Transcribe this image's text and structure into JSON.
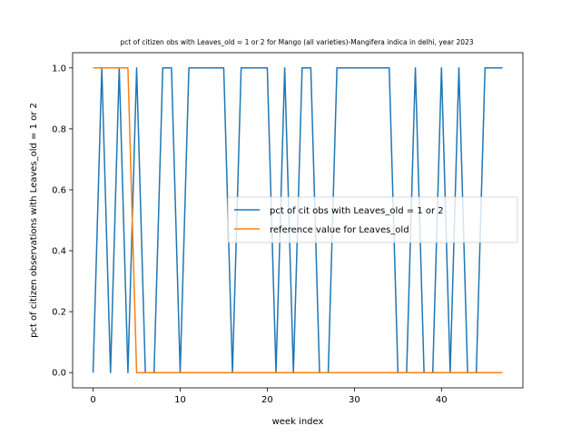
{
  "chart_data": {
    "type": "line",
    "title": "pct of citizen obs with Leaves_old = 1 or 2 for Mango (all varieties)-Mangifera indica in delhi, year 2023",
    "xlabel": "week index",
    "ylabel": "pct of citizen observations with Leaves_old = 1 or 2",
    "xlim": [
      -2.35,
      49.35
    ],
    "ylim": [
      -0.05,
      1.05
    ],
    "xticks": [
      0,
      10,
      20,
      30,
      40
    ],
    "xtick_labels": [
      "0",
      "10",
      "20",
      "30",
      "40"
    ],
    "yticks": [
      0.0,
      0.2,
      0.4,
      0.6,
      0.8,
      1.0
    ],
    "ytick_labels": [
      "0.0",
      "0.2",
      "0.4",
      "0.6",
      "0.8",
      "1.0"
    ],
    "grid": false,
    "legend_position": "center-right",
    "series": [
      {
        "name": "pct of cit obs with Leaves_old = 1 or 2",
        "color": "#1f77b4",
        "x": [
          0,
          1,
          2,
          3,
          4,
          5,
          6,
          7,
          8,
          9,
          10,
          11,
          12,
          13,
          14,
          15,
          16,
          17,
          18,
          19,
          20,
          21,
          22,
          23,
          24,
          25,
          26,
          27,
          28,
          29,
          30,
          31,
          32,
          33,
          34,
          35,
          36,
          37,
          38,
          39,
          40,
          41,
          42,
          43,
          44,
          45,
          46,
          47
        ],
        "y": [
          0,
          1,
          0,
          1,
          0,
          1,
          0,
          0,
          1,
          1,
          0,
          1,
          1,
          1,
          1,
          1,
          0,
          1,
          1,
          1,
          1,
          0,
          1,
          0,
          1,
          1,
          0,
          0,
          1,
          1,
          1,
          1,
          1,
          1,
          1,
          0,
          0,
          1,
          0,
          0,
          1,
          0,
          1,
          0,
          0,
          1,
          1,
          1
        ]
      },
      {
        "name": "reference value for Leaves_old",
        "color": "#ff7f0e",
        "x": [
          0,
          1,
          2,
          3,
          4,
          5,
          6,
          7,
          8,
          9,
          10,
          11,
          12,
          13,
          14,
          15,
          16,
          17,
          18,
          19,
          20,
          21,
          22,
          23,
          24,
          25,
          26,
          27,
          28,
          29,
          30,
          31,
          32,
          33,
          34,
          35,
          36,
          37,
          38,
          39,
          40,
          41,
          42,
          43,
          44,
          45,
          46,
          47
        ],
        "y": [
          1,
          1,
          1,
          1,
          1,
          0,
          0,
          0,
          0,
          0,
          0,
          0,
          0,
          0,
          0,
          0,
          0,
          0,
          0,
          0,
          0,
          0,
          0,
          0,
          0,
          0,
          0,
          0,
          0,
          0,
          0,
          0,
          0,
          0,
          0,
          0,
          0,
          0,
          0,
          0,
          0,
          0,
          0,
          0,
          0,
          0,
          0,
          0
        ]
      }
    ]
  }
}
